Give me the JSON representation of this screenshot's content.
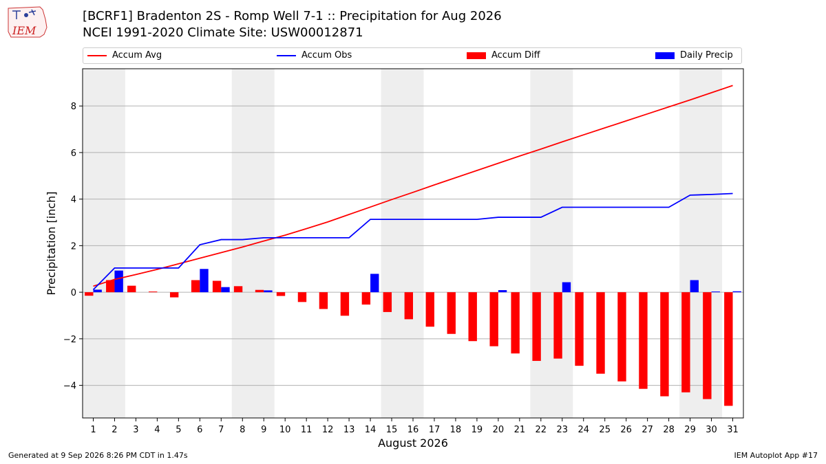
{
  "header": {
    "title_line1": "[BCRF1] Bradenton 2S - Romp Well 7-1 :: Precipitation for Aug 2026",
    "title_line2": "NCEI 1991-2020 Climate Site: USW00012871",
    "logo_text": "IEM"
  },
  "footer": {
    "generated": "Generated at 9 Sep 2026 8:26 PM CDT in 1.47s",
    "app": "IEM Autoplot App #17"
  },
  "colors": {
    "accum_avg": "#ff0000",
    "accum_obs": "#0000ff",
    "accum_diff": "#ff0000",
    "daily_precip": "#0000ff",
    "weekend_shade": "#eeeeee",
    "grid": "#b0b0b0"
  },
  "chart_data": {
    "type": "bar",
    "xlabel": "August 2026",
    "ylabel": "Precipitation [inch]",
    "x": [
      1,
      2,
      3,
      4,
      5,
      6,
      7,
      8,
      9,
      10,
      11,
      12,
      13,
      14,
      15,
      16,
      17,
      18,
      19,
      20,
      21,
      22,
      23,
      24,
      25,
      26,
      27,
      28,
      29,
      30,
      31
    ],
    "xlim": [
      0.5,
      31.5
    ],
    "ylim": [
      -5.4,
      9.6
    ],
    "yticks": [
      -4,
      -2,
      0,
      2,
      4,
      6,
      8
    ],
    "ytick_labels": [
      "−4",
      "−2",
      "0",
      "2",
      "4",
      "6",
      "8"
    ],
    "grid": "horizontal",
    "legend_placement": "top",
    "shaded_days": [
      [
        1,
        2
      ],
      [
        8,
        9
      ],
      [
        15,
        16
      ],
      [
        22,
        23
      ],
      [
        29,
        30
      ]
    ],
    "series": [
      {
        "name": "Accum Avg",
        "kind": "line",
        "values": [
          0.26,
          0.55,
          0.76,
          0.98,
          1.22,
          1.46,
          1.7,
          1.94,
          2.2,
          2.45,
          2.73,
          3.02,
          3.34,
          3.66,
          3.98,
          4.29,
          4.61,
          4.92,
          5.23,
          5.54,
          5.85,
          6.15,
          6.46,
          6.76,
          7.06,
          7.36,
          7.66,
          7.96,
          8.26,
          8.57,
          8.88
        ]
      },
      {
        "name": "Accum Obs",
        "kind": "line",
        "values": [
          0.11,
          1.04,
          1.04,
          1.04,
          1.04,
          2.04,
          2.26,
          2.26,
          2.34,
          2.34,
          2.34,
          2.34,
          2.34,
          3.13,
          3.13,
          3.13,
          3.13,
          3.13,
          3.13,
          3.22,
          3.22,
          3.22,
          3.65,
          3.65,
          3.65,
          3.65,
          3.65,
          3.65,
          4.17,
          4.2,
          4.24
        ]
      },
      {
        "name": "Accum Diff",
        "kind": "bar",
        "values": [
          -0.15,
          0.52,
          0.28,
          0.03,
          -0.22,
          0.52,
          0.49,
          0.26,
          0.1,
          -0.16,
          -0.42,
          -0.72,
          -1.01,
          -0.53,
          -0.85,
          -1.16,
          -1.48,
          -1.79,
          -2.1,
          -2.32,
          -2.63,
          -2.95,
          -2.85,
          -3.16,
          -3.5,
          -3.83,
          -4.15,
          -4.47,
          -4.3,
          -4.59,
          -4.88
        ]
      },
      {
        "name": "Daily Precip",
        "kind": "bar",
        "values": [
          0.11,
          0.93,
          0,
          0,
          0,
          1.0,
          0.22,
          0,
          0.08,
          0,
          0,
          0,
          0,
          0.79,
          0,
          0,
          0,
          0,
          0,
          0.09,
          0,
          0,
          0.43,
          0,
          0,
          0,
          0,
          0,
          0.52,
          0.03,
          0.04
        ]
      }
    ]
  }
}
